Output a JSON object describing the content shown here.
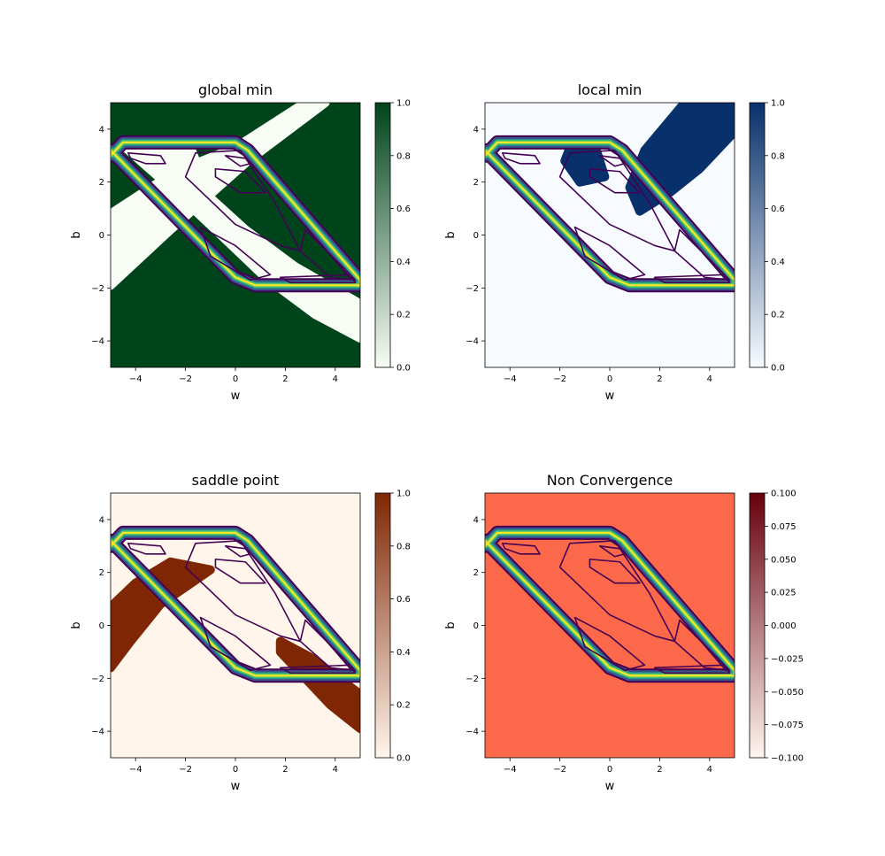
{
  "chart_data": [
    {
      "type": "heatmap",
      "title": "global min",
      "xlabel": "w",
      "ylabel": "b",
      "xlim": [
        -5,
        5
      ],
      "ylim": [
        -5,
        5
      ],
      "xticks": [
        -4,
        -2,
        0,
        2,
        4
      ],
      "yticks": [
        -4,
        -2,
        0,
        2,
        4
      ],
      "colormap": "Greens",
      "colorbar": {
        "range": [
          0,
          1
        ],
        "ticks": [
          "0.0",
          "0.2",
          "0.4",
          "0.6",
          "0.8",
          "1.0"
        ],
        "low_color": "#f7fcf5",
        "high_color": "#00441b"
      },
      "background_value": 1.0,
      "regions": [
        {
          "value": 0,
          "polygon": [
            [
              -5,
              0.8
            ],
            [
              -5,
              -1.9
            ],
            [
              -2.6,
              0.2
            ],
            [
              0.5,
              2.8
            ],
            [
              3.6,
              5
            ],
            [
              2.8,
              5
            ],
            [
              0,
              3.3
            ],
            [
              -2.4,
              2.4
            ]
          ]
        },
        {
          "value": 0,
          "polygon": [
            [
              -4.4,
              3.3
            ],
            [
              -1.8,
              3.3
            ],
            [
              -1.0,
              1.4
            ],
            [
              0.4,
              0.2
            ],
            [
              2.4,
              -1.2
            ],
            [
              5,
              -2.6
            ],
            [
              5,
              -3.9
            ],
            [
              3.2,
              -3.0
            ],
            [
              1.2,
              -1.6
            ],
            [
              -0.8,
              0.2
            ],
            [
              -2.6,
              1.8
            ]
          ]
        }
      ]
    },
    {
      "type": "heatmap",
      "title": "local min",
      "xlabel": "w",
      "ylabel": "b",
      "xlim": [
        -5,
        5
      ],
      "ylim": [
        -5,
        5
      ],
      "xticks": [
        -4,
        -2,
        0,
        2,
        4
      ],
      "yticks": [
        -4,
        -2,
        0,
        2,
        4
      ],
      "colormap": "Blues",
      "colorbar": {
        "range": [
          0,
          1
        ],
        "ticks": [
          "0.0",
          "0.2",
          "0.4",
          "0.6",
          "0.8",
          "1.0"
        ],
        "low_color": "#f7fbff",
        "high_color": "#08306b"
      },
      "background_value": 0.0,
      "regions": [
        {
          "value": 1,
          "polygon": [
            [
              1.2,
              0.9
            ],
            [
              0.8,
              1.8
            ],
            [
              1.4,
              3.2
            ],
            [
              3.0,
              5
            ],
            [
              5,
              5
            ],
            [
              5,
              3.9
            ],
            [
              3.6,
              2.5
            ],
            [
              2.4,
              1.6
            ]
          ]
        },
        {
          "value": 1,
          "polygon": [
            [
              -1.6,
              3.3
            ],
            [
              -0.6,
              3.4
            ],
            [
              -0.2,
              2.2
            ],
            [
              -1.2,
              2.0
            ],
            [
              -1.8,
              2.8
            ]
          ]
        }
      ]
    },
    {
      "type": "heatmap",
      "title": "saddle point",
      "xlabel": "w",
      "ylabel": "b",
      "xlim": [
        -5,
        5
      ],
      "ylim": [
        -5,
        5
      ],
      "xticks": [
        -4,
        -2,
        0,
        2,
        4
      ],
      "yticks": [
        -4,
        -2,
        0,
        2,
        4
      ],
      "colormap": "Oranges",
      "colorbar": {
        "range": [
          0,
          1
        ],
        "ticks": [
          "0.0",
          "0.2",
          "0.4",
          "0.6",
          "0.8",
          "1.0"
        ],
        "low_color": "#fff5eb",
        "high_color": "#7f2704"
      },
      "background_value": 0.0,
      "regions": [
        {
          "value": 1,
          "polygon": [
            [
              -5,
              0.7
            ],
            [
              -4.0,
              1.6
            ],
            [
              -2.6,
              2.4
            ],
            [
              -1.0,
              2.1
            ],
            [
              -3.0,
              0.8
            ],
            [
              -4.2,
              -0.6
            ],
            [
              -5,
              -1.6
            ]
          ]
        },
        {
          "value": 1,
          "polygon": [
            [
              1.8,
              -0.6
            ],
            [
              3.0,
              -1.2
            ],
            [
              5,
              -2.6
            ],
            [
              5,
              -3.9
            ],
            [
              3.8,
              -3.0
            ],
            [
              2.6,
              -1.8
            ],
            [
              1.8,
              -1.0
            ]
          ]
        }
      ]
    },
    {
      "type": "heatmap",
      "title": "Non Convergence",
      "xlabel": "w",
      "ylabel": "b",
      "xlim": [
        -5,
        5
      ],
      "ylim": [
        -5,
        5
      ],
      "xticks": [
        -4,
        -2,
        0,
        2,
        4
      ],
      "yticks": [
        -4,
        -2,
        0,
        2,
        4
      ],
      "colormap": "Reds",
      "colorbar": {
        "range": [
          -0.1,
          0.1
        ],
        "ticks": [
          "−0.100",
          "−0.075",
          "−0.050",
          "−0.025",
          "0.000",
          "0.025",
          "0.050",
          "0.075",
          "0.100"
        ],
        "low_color": "#fff5f0",
        "high_color": "#67000d"
      },
      "background_value": 0.0,
      "background_color": "#fb694a",
      "regions": []
    }
  ],
  "contour_overlay": {
    "description_colors": [
      "#440154",
      "#3b528b",
      "#21918c",
      "#5ec962",
      "#fde725"
    ],
    "outer_band": [
      [
        -5,
        3.0
      ],
      [
        -4.5,
        3.5
      ],
      [
        0,
        3.5
      ],
      [
        0.5,
        3.2
      ],
      [
        5,
        -1.7
      ],
      [
        5,
        -1.9
      ],
      [
        0.8,
        -1.9
      ],
      [
        0,
        -1.6
      ],
      [
        -5,
        3.2
      ]
    ],
    "inner_loops": [
      [
        [
          -4.3,
          3.1
        ],
        [
          -3.0,
          3.0
        ],
        [
          -2.8,
          2.7
        ],
        [
          -3.6,
          2.7
        ],
        [
          -4.2,
          2.9
        ]
      ],
      [
        [
          -1.6,
          3.1
        ],
        [
          0.2,
          3.2
        ],
        [
          1.6,
          1.2
        ],
        [
          2.6,
          -0.6
        ],
        [
          1.8,
          -0.4
        ],
        [
          0.0,
          0.4
        ],
        [
          -2.0,
          2.2
        ]
      ],
      [
        [
          -0.8,
          2.5
        ],
        [
          0.4,
          2.4
        ],
        [
          1.2,
          1.6
        ],
        [
          0.2,
          1.6
        ],
        [
          -0.8,
          2.2
        ]
      ],
      [
        [
          -1.4,
          0.3
        ],
        [
          0.0,
          -0.4
        ],
        [
          1.4,
          -1.5
        ],
        [
          0.6,
          -1.7
        ],
        [
          -1.0,
          -0.8
        ]
      ],
      [
        [
          2.8,
          0.2
        ],
        [
          4.4,
          -1.3
        ],
        [
          4.8,
          -1.7
        ],
        [
          3.8,
          -1.6
        ],
        [
          2.6,
          -0.6
        ]
      ],
      [
        [
          -0.4,
          3.0
        ],
        [
          0.4,
          2.9
        ],
        [
          0.6,
          2.7
        ],
        [
          0.2,
          2.6
        ]
      ],
      [
        [
          1.8,
          -1.6
        ],
        [
          4.6,
          -1.5
        ],
        [
          4.8,
          -1.8
        ],
        [
          2.2,
          -1.8
        ]
      ]
    ]
  }
}
